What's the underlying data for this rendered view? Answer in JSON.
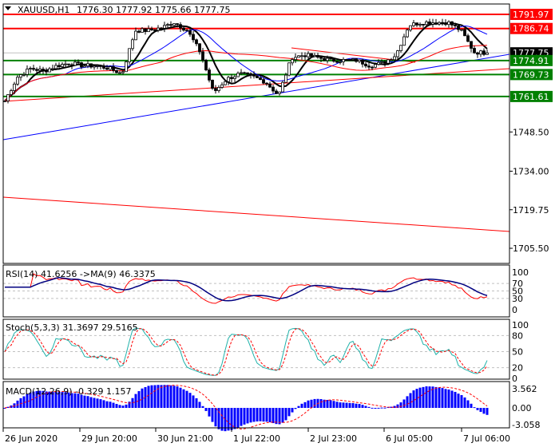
{
  "header": {
    "symbol": "XAUUSD,H1",
    "ohlc": "1776.30 1777.92 1775.66 1777.75"
  },
  "colors": {
    "up": "#000000",
    "down": "#000000",
    "resistance": "#ff0000",
    "support": "#008000",
    "trend": "#0000ff",
    "current": "#000000"
  },
  "chart_data": [
    {
      "type": "candlestick",
      "title": "XAUUSD,H1",
      "y_ticks": [
        1748.5,
        1734.0,
        1719.75,
        1705.5
      ],
      "ylim": [
        1702.0,
        1793.5
      ],
      "x_ticks": [
        "26 Jun 2020",
        "29 Jun 20:00",
        "30 Jun 21:00",
        "1 Jul 22:00",
        "2 Jul 23:00",
        "6 Jul 05:00",
        "7 Jul 06:00"
      ],
      "close_approx": [
        1760,
        1769,
        1772,
        1771,
        1773,
        1774,
        1773,
        1773,
        1772,
        1770,
        1786,
        1786,
        1787,
        1789,
        1786,
        1778,
        1763,
        1768,
        1770,
        1769,
        1767,
        1762,
        1776,
        1777,
        1776,
        1775,
        1775,
        1775,
        1773,
        1774,
        1777,
        1788,
        1789,
        1789,
        1789,
        1786,
        1778,
        1777.75
      ],
      "levels": [
        {
          "label": "1791.97",
          "value": 1791.97,
          "type": "resistance"
        },
        {
          "label": "1786.74",
          "value": 1786.74,
          "type": "resistance"
        },
        {
          "label": "1777.75",
          "value": 1777.75,
          "type": "current"
        },
        {
          "label": "1774.91",
          "value": 1774.91,
          "type": "support"
        },
        {
          "label": "1769.73",
          "value": 1769.73,
          "type": "support"
        },
        {
          "label": "1761.61",
          "value": 1761.61,
          "type": "support"
        }
      ]
    },
    {
      "type": "line",
      "title": "RSI(14) 41.6256  ->MA(9) 46.3375",
      "y_ticks": [
        "100",
        "70",
        "50",
        "30",
        "0"
      ],
      "ylim": [
        0,
        100
      ]
    },
    {
      "type": "line",
      "title": "Stoch(5,3,3) 31.3697 29.5165",
      "y_ticks": [
        "100",
        "80",
        "50",
        "20",
        "0"
      ],
      "ylim": [
        0,
        100
      ]
    },
    {
      "type": "bar",
      "title": "MACD(12,26,9) -0.329 1.157",
      "y_ticks": [
        "3.562",
        "0.00",
        "-3.058"
      ],
      "ylim": [
        -3.6,
        4.2
      ]
    }
  ]
}
